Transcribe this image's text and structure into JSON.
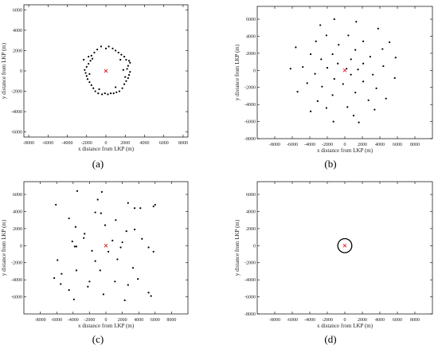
{
  "colors": {
    "points": "#000000",
    "lkp_marker": "#e41a1c",
    "axes": "#000000",
    "circle": "#000000"
  },
  "chart_data": [
    {
      "panel_label": "(a)",
      "type": "scatter",
      "xlabel": "x distance from LKP (m)",
      "ylabel": "y distance from LKP (m)",
      "xlim": [
        -8500,
        8500
      ],
      "ylim": [
        -6500,
        6500
      ],
      "xticks": [
        -8000,
        -6000,
        -4000,
        -2000,
        0,
        2000,
        4000,
        6000,
        8000
      ],
      "yticks": [
        -6000,
        -4000,
        -2000,
        0,
        2000,
        4000,
        6000
      ],
      "lkp": [
        0,
        0
      ],
      "points": [
        [
          -1800,
          1400
        ],
        [
          -1500,
          1500
        ],
        [
          -1200,
          1800
        ],
        [
          -900,
          2100
        ],
        [
          -500,
          2400
        ],
        [
          0,
          2200
        ],
        [
          300,
          2400
        ],
        [
          700,
          2200
        ],
        [
          1000,
          2000
        ],
        [
          1300,
          1800
        ],
        [
          1600,
          1600
        ],
        [
          1900,
          1400
        ],
        [
          2100,
          1100
        ],
        [
          2400,
          1000
        ],
        [
          2500,
          800
        ],
        [
          2300,
          500
        ],
        [
          2200,
          200
        ],
        [
          2500,
          -100
        ],
        [
          2400,
          -400
        ],
        [
          2300,
          -700
        ],
        [
          2100,
          -1000
        ],
        [
          1900,
          -1300
        ],
        [
          1700,
          -1700
        ],
        [
          1400,
          -2000
        ],
        [
          1100,
          -2100
        ],
        [
          800,
          -2200
        ],
        [
          500,
          -2200
        ],
        [
          200,
          -2300
        ],
        [
          -100,
          -2200
        ],
        [
          -400,
          -2300
        ],
        [
          -800,
          -2200
        ],
        [
          -1100,
          -2000
        ],
        [
          -1300,
          -1700
        ],
        [
          -1500,
          -1400
        ],
        [
          -1700,
          -1100
        ],
        [
          -1900,
          -800
        ],
        [
          -2000,
          -500
        ],
        [
          -2100,
          -200
        ],
        [
          -2200,
          100
        ],
        [
          -2000,
          400
        ],
        [
          -1800,
          700
        ],
        [
          -1600,
          1000
        ],
        [
          -2300,
          1100
        ],
        [
          -1400,
          1200
        ],
        [
          1500,
          1100
        ],
        [
          1800,
          100
        ],
        [
          -1700,
          -300
        ],
        [
          2000,
          -600
        ],
        [
          1000,
          -1600
        ],
        [
          -700,
          -1800
        ]
      ]
    },
    {
      "panel_label": "(b)",
      "type": "scatter",
      "xlabel": "x distance from LKP (m)",
      "ylabel": "y distance from LKP (m)",
      "xlim": [
        -10000,
        10000
      ],
      "ylim": [
        -8000,
        7500
      ],
      "xticks": [
        -8000,
        -6000,
        -4000,
        -2000,
        0,
        2000,
        4000,
        6000,
        8000
      ],
      "yticks": [
        -8000,
        -6000,
        -4000,
        -2000,
        0,
        2000,
        4000,
        6000
      ],
      "lkp": [
        0,
        0
      ],
      "points": [
        [
          -1200,
          6000
        ],
        [
          1300,
          5700
        ],
        [
          -2800,
          5300
        ],
        [
          3800,
          4900
        ],
        [
          400,
          4100
        ],
        [
          -2100,
          4100
        ],
        [
          -3300,
          3400
        ],
        [
          2100,
          3400
        ],
        [
          5100,
          3300
        ],
        [
          -700,
          3000
        ],
        [
          -5600,
          2700
        ],
        [
          4300,
          2500
        ],
        [
          1200,
          2400
        ],
        [
          -3900,
          1900
        ],
        [
          -1400,
          1900
        ],
        [
          2900,
          1600
        ],
        [
          5800,
          1500
        ],
        [
          -2700,
          1300
        ],
        [
          700,
          1300
        ],
        [
          -800,
          800
        ],
        [
          2100,
          800
        ],
        [
          4400,
          500
        ],
        [
          -4800,
          400
        ],
        [
          -2000,
          300
        ],
        [
          1500,
          100
        ],
        [
          -6200,
          200
        ],
        [
          200,
          200
        ],
        [
          -3400,
          -400
        ],
        [
          700,
          -500
        ],
        [
          3200,
          -500
        ],
        [
          -1200,
          -1000
        ],
        [
          5700,
          -900
        ],
        [
          2100,
          -1300
        ],
        [
          -4300,
          -1500
        ],
        [
          -200,
          -1600
        ],
        [
          -2600,
          -1900
        ],
        [
          3600,
          -2100
        ],
        [
          1200,
          -2600
        ],
        [
          -5400,
          -2500
        ],
        [
          -1400,
          -2900
        ],
        [
          4700,
          -3300
        ],
        [
          -3100,
          -3600
        ],
        [
          2700,
          -3500
        ],
        [
          300,
          -4300
        ],
        [
          -2100,
          -4400
        ],
        [
          -3900,
          -4800
        ],
        [
          3400,
          -4600
        ],
        [
          1000,
          -5300
        ],
        [
          -1300,
          -6000
        ],
        [
          1600,
          -6100
        ]
      ]
    },
    {
      "panel_label": "(c)",
      "type": "scatter",
      "xlabel": "x distance from LKP (m)",
      "ylabel": "y distance from LKP (m)",
      "xlim": [
        -10000,
        10000
      ],
      "ylim": [
        -8000,
        7500
      ],
      "xticks": [
        -8000,
        -6000,
        -4000,
        -2000,
        0,
        2000,
        4000,
        6000,
        8000
      ],
      "yticks": [
        -6000,
        -4000,
        -2000,
        0,
        2000,
        4000,
        6000
      ],
      "lkp": [
        0,
        0
      ],
      "points": [
        [
          -3500,
          6400
        ],
        [
          -500,
          6300
        ],
        [
          2700,
          5000
        ],
        [
          -6100,
          4800
        ],
        [
          -1000,
          5400
        ],
        [
          6000,
          4800
        ],
        [
          3500,
          4400
        ],
        [
          4200,
          4400
        ],
        [
          5800,
          4600
        ],
        [
          -600,
          3800
        ],
        [
          -1300,
          3900
        ],
        [
          -4500,
          3200
        ],
        [
          1200,
          3000
        ],
        [
          -3700,
          2200
        ],
        [
          -100,
          2400
        ],
        [
          -2600,
          1400
        ],
        [
          2500,
          1700
        ],
        [
          3500,
          1900
        ],
        [
          -2700,
          900
        ],
        [
          -3600,
          -100
        ],
        [
          -3800,
          -100
        ],
        [
          -4100,
          500
        ],
        [
          2000,
          400
        ],
        [
          -1700,
          -600
        ],
        [
          1800,
          -200
        ],
        [
          800,
          600
        ],
        [
          4400,
          800
        ],
        [
          5200,
          -200
        ],
        [
          5800,
          -700
        ],
        [
          300,
          -700
        ],
        [
          -5900,
          -1700
        ],
        [
          -1300,
          -1800
        ],
        [
          1400,
          -1600
        ],
        [
          3300,
          -2600
        ],
        [
          -700,
          -2900
        ],
        [
          -3600,
          -2900
        ],
        [
          -5400,
          -3300
        ],
        [
          -6300,
          -3800
        ],
        [
          3900,
          -3900
        ],
        [
          -2000,
          -4200
        ],
        [
          1100,
          -4200
        ],
        [
          -5500,
          -4500
        ],
        [
          2700,
          -4600
        ],
        [
          -2200,
          -4800
        ],
        [
          5200,
          -5500
        ],
        [
          -300,
          -5700
        ],
        [
          5500,
          -5900
        ],
        [
          -3900,
          -6300
        ],
        [
          2300,
          -6400
        ],
        [
          -4500,
          -5200
        ]
      ]
    },
    {
      "panel_label": "(d)",
      "type": "scatter",
      "xlabel": "x distance from LKP (m)",
      "ylabel": "y distance from LKP (m)",
      "xlim": [
        -10000,
        10000
      ],
      "ylim": [
        -8000,
        7500
      ],
      "xticks": [
        -8000,
        -6000,
        -4000,
        -2000,
        0,
        2000,
        4000,
        6000,
        8000
      ],
      "yticks": [
        -8000,
        -6000,
        -4000,
        -2000,
        0,
        2000,
        4000,
        6000
      ],
      "lkp": [
        0,
        0
      ],
      "circle_radius": 800,
      "points": []
    }
  ]
}
